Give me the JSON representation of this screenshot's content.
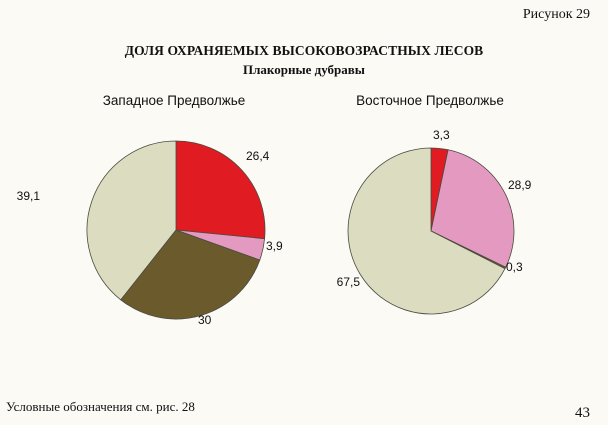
{
  "figure_label": "Рисунок 29",
  "title": "ДОЛЯ ОХРАНЯЕМЫХ ВЫСОКОВОЗРАСТНЫХ ЛЕСОВ",
  "subtitle": "Плакорные дубравы",
  "legend_note": "Условные обозначения    см. рис. 28",
  "page_number": "43",
  "colors": {
    "red": "#e01c22",
    "pink": "#e49ac0",
    "olive": "#6b5a2c",
    "beige": "#dcdcc0",
    "outline": "#4a4a40"
  },
  "chart_data": [
    {
      "type": "pie",
      "title": "Западное Предволжье",
      "values": [
        26.4,
        3.9,
        30,
        39.1
      ],
      "labels": [
        "26,4",
        "3,9",
        "30",
        "39,1"
      ],
      "slice_colors": [
        "#e01c22",
        "#e49ac0",
        "#6b5a2c",
        "#dcdcc0"
      ],
      "start": "12 o'clock",
      "direction": "clockwise"
    },
    {
      "type": "pie",
      "title": "Восточное Предволжье",
      "values": [
        3.3,
        28.9,
        0.3,
        67.5
      ],
      "labels": [
        "3,3",
        "28,9",
        "0,3",
        "67,5"
      ],
      "slice_colors": [
        "#e01c22",
        "#e49ac0",
        "#6b5a2c",
        "#dcdcc0"
      ],
      "start": "12 o'clock",
      "direction": "clockwise"
    }
  ]
}
